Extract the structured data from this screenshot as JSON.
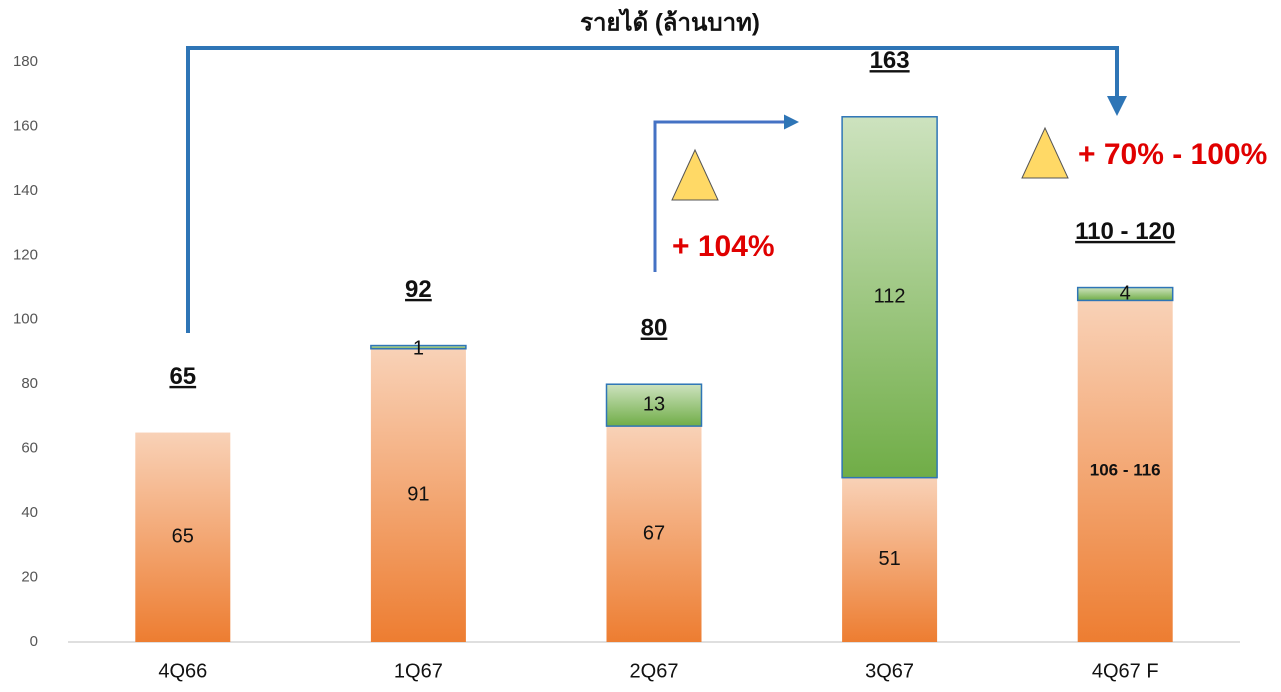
{
  "chart_data": {
    "type": "stacked_bar",
    "title": "รายได้ (ล้านบาท)",
    "categories": [
      "4Q66",
      "1Q67",
      "2Q67",
      "3Q67",
      "4Q67 F"
    ],
    "series": [
      {
        "color": "#ed7d31",
        "values": [
          65,
          91,
          67,
          51,
          106
        ],
        "value_labels": [
          "65",
          "91",
          "67",
          "51",
          "106 - 116"
        ]
      },
      {
        "color": "#70ad47",
        "values": [
          null,
          1,
          13,
          112,
          4
        ]
      }
    ],
    "total_labels": [
      "65",
      "92",
      "80",
      "163",
      "110 - 120"
    ],
    "annotations": [
      "+ 104%",
      "+ 70% - 100%"
    ],
    "ylim": [
      0,
      180
    ],
    "yticks": [
      0,
      20,
      40,
      60,
      80,
      100,
      120,
      140,
      160,
      180
    ],
    "grid": false
  }
}
